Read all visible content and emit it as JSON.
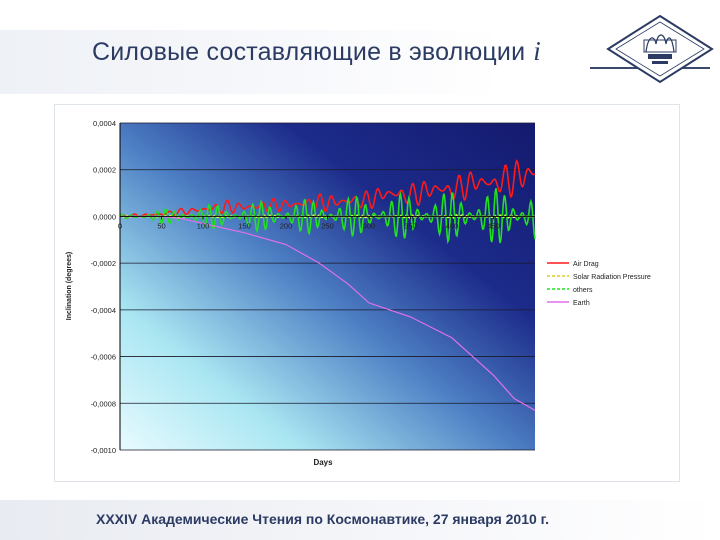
{
  "slide": {
    "title": "Силовые составляющие в эволюции",
    "title_symbol": "i",
    "footer": "XXXIV Академические Чтения по Космонавтике, 27 января 2010 г."
  },
  "colors": {
    "title": "#2b3b63",
    "plot_bg_dark": "#141a6e",
    "plot_bg_light": "#e8fbff",
    "air_drag": "#ff1a1a",
    "solar_radiation": "#ffff66",
    "others": "#22e022",
    "earth": "#e070e8"
  },
  "chart_data": {
    "type": "line",
    "xlabel": "Days",
    "ylabel": "Inclination (degrees)",
    "xlim": [
      0,
      500
    ],
    "ylim": [
      -0.001,
      0.0004
    ],
    "x_ticks": [
      0,
      50,
      100,
      150,
      200,
      250,
      300,
      350,
      400,
      450
    ],
    "x_tick_labels": [
      "0",
      "50",
      "100",
      "150",
      "200",
      "250",
      "300",
      "350",
      "400",
      "450"
    ],
    "y_ticks": [
      0.0004,
      0.0002,
      0.0,
      -0.0002,
      -0.0004,
      -0.0006,
      -0.0008,
      -0.001
    ],
    "y_tick_labels": [
      "0,0004",
      "0,0002",
      "0,0000",
      "-0,0002",
      "-0,0004",
      "-0,0006",
      "-0,0008",
      "-0,0010"
    ],
    "legend_position": "right",
    "grid": true,
    "series": [
      {
        "name": "Air Drag",
        "color": "#ff1a1a",
        "style": "band",
        "x": [
          0,
          50,
          100,
          130,
          150,
          200,
          250,
          300,
          320,
          350,
          380,
          400,
          430,
          450,
          480,
          500
        ],
        "y": [
          0.0,
          1e-05,
          3e-05,
          4e-05,
          4e-05,
          5e-05,
          6e-05,
          7e-05,
          0.0001,
          9e-05,
          0.00012,
          0.00011,
          0.00015,
          0.00014,
          0.00017,
          0.00019
        ],
        "amplitude": [
          5e-06,
          1e-05,
          2e-05,
          3e-05,
          3e-05,
          3e-05,
          4e-05,
          4e-05,
          5e-05,
          5e-05,
          6e-05,
          6e-05,
          6e-05,
          7e-05,
          8e-05,
          9e-05
        ]
      },
      {
        "name": "Solar Radiation Pressure",
        "color": "#ffff66",
        "style": "band",
        "x": [
          0,
          100,
          200,
          300,
          400,
          500
        ],
        "y": [
          0.0,
          0.0,
          0.0,
          0.0,
          0.0,
          0.0
        ],
        "amplitude": [
          3e-06,
          4e-06,
          5e-06,
          5e-06,
          6e-06,
          6e-06
        ]
      },
      {
        "name": "others",
        "color": "#22e022",
        "style": "band",
        "x": [
          0,
          50,
          100,
          150,
          200,
          250,
          300,
          350,
          400,
          450,
          500
        ],
        "y": [
          0.0,
          0.0,
          0.0,
          0.0,
          0.0,
          0.0,
          0.0,
          0.0,
          0.0,
          0.0,
          0.0
        ],
        "amplitude": [
          1e-05,
          3e-05,
          5e-05,
          6e-05,
          7e-05,
          8e-05,
          9e-05,
          0.0001,
          0.00011,
          0.00012,
          0.00013
        ]
      },
      {
        "name": "Earth",
        "color": "#e070e8",
        "style": "line",
        "x": [
          0,
          50,
          75,
          100,
          150,
          200,
          240,
          275,
          300,
          350,
          400,
          450,
          475,
          500
        ],
        "y": [
          0.0,
          0.0,
          -1e-05,
          -3e-05,
          -7e-05,
          -0.00012,
          -0.0002,
          -0.00029,
          -0.00037,
          -0.00043,
          -0.00052,
          -0.00068,
          -0.00078,
          -0.00083
        ]
      }
    ]
  }
}
